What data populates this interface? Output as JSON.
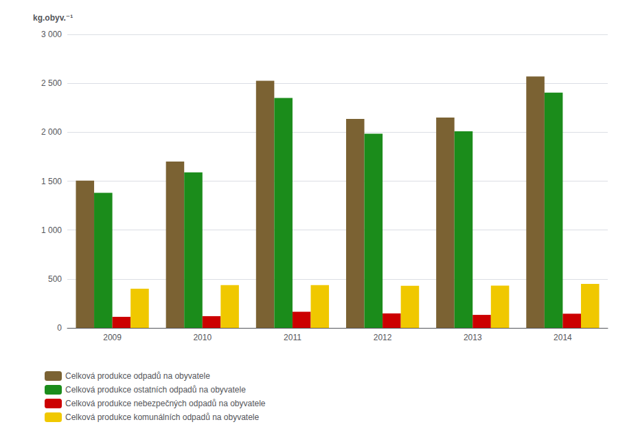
{
  "chart_data": {
    "type": "bar",
    "ylabel": "kg.obyv.⁻¹",
    "categories": [
      "2009",
      "2010",
      "2011",
      "2012",
      "2013",
      "2014"
    ],
    "series": [
      {
        "name": "Celková produkce odpadů na obyvatele",
        "color": "#7B6233",
        "values": [
          1505,
          1700,
          2525,
          2135,
          2150,
          2570
        ]
      },
      {
        "name": "Celková produkce ostatních odpadů na obyvatele",
        "color": "#1B8C1B",
        "values": [
          1380,
          1590,
          2350,
          1985,
          2010,
          2405
        ]
      },
      {
        "name": "Celková produkce nebezpečných odpadů na obyvatele",
        "color": "#CC0000",
        "values": [
          113,
          120,
          165,
          148,
          133,
          145
        ]
      },
      {
        "name": "Celková produkce komunálních odpadů na obyvatele",
        "color": "#F0C800",
        "values": [
          400,
          438,
          438,
          430,
          432,
          450
        ]
      }
    ],
    "ylim": [
      0,
      3000
    ],
    "yticks": [
      0,
      500,
      {
        "value": 1000,
        "label": "1 000"
      },
      {
        "value": 1500,
        "label": "1 500"
      },
      {
        "value": 2000,
        "label": "2 000"
      },
      {
        "value": 2500,
        "label": "2 500"
      },
      {
        "value": 3000,
        "label": "3 000"
      }
    ],
    "grid": true,
    "legend": "lower left"
  }
}
